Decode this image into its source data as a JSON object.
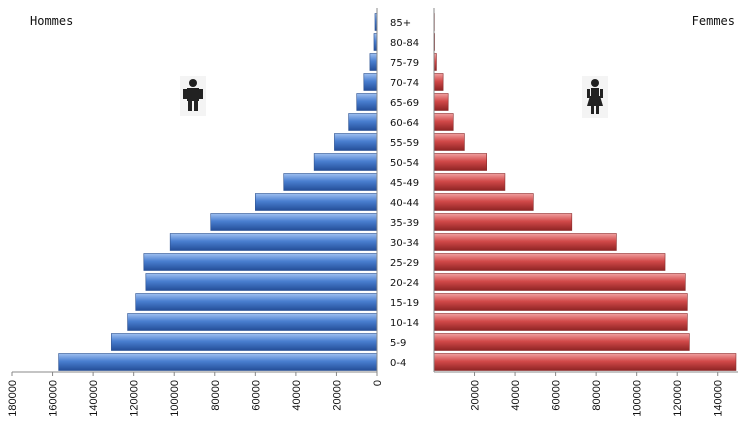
{
  "titles": {
    "left": "Hommes",
    "right": "Femmes"
  },
  "icons": {
    "left": "male-figure-icon",
    "right": "female-figure-icon"
  },
  "colors": {
    "male": "#4a7fd0",
    "female": "#d24a4a"
  },
  "chart_data": {
    "type": "bar",
    "orientation": "horizontal",
    "categories": [
      "0-4",
      "5-9",
      "10-14",
      "15-19",
      "20-24",
      "25-29",
      "30-34",
      "35-39",
      "40-44",
      "45-49",
      "50-54",
      "55-59",
      "60-64",
      "65-69",
      "70-74",
      "75-79",
      "80-84",
      "85+"
    ],
    "series": [
      {
        "name": "Hommes",
        "values": [
          157000,
          131000,
          123000,
          119000,
          114000,
          115000,
          102000,
          82000,
          60000,
          46000,
          31000,
          21000,
          14000,
          10000,
          6500,
          3500,
          1500,
          1000
        ]
      },
      {
        "name": "Femmes",
        "values": [
          149000,
          126000,
          125000,
          125000,
          124000,
          114000,
          90000,
          68000,
          49000,
          35000,
          26000,
          15000,
          9500,
          7000,
          4500,
          1200,
          300,
          200
        ]
      }
    ],
    "left_axis": {
      "ticks": [
        180000,
        160000,
        140000,
        120000,
        100000,
        80000,
        60000,
        40000,
        20000,
        0
      ],
      "max": 180000
    },
    "right_axis": {
      "ticks": [
        20000,
        40000,
        60000,
        80000,
        100000,
        120000,
        140000
      ],
      "max": 150000
    }
  }
}
